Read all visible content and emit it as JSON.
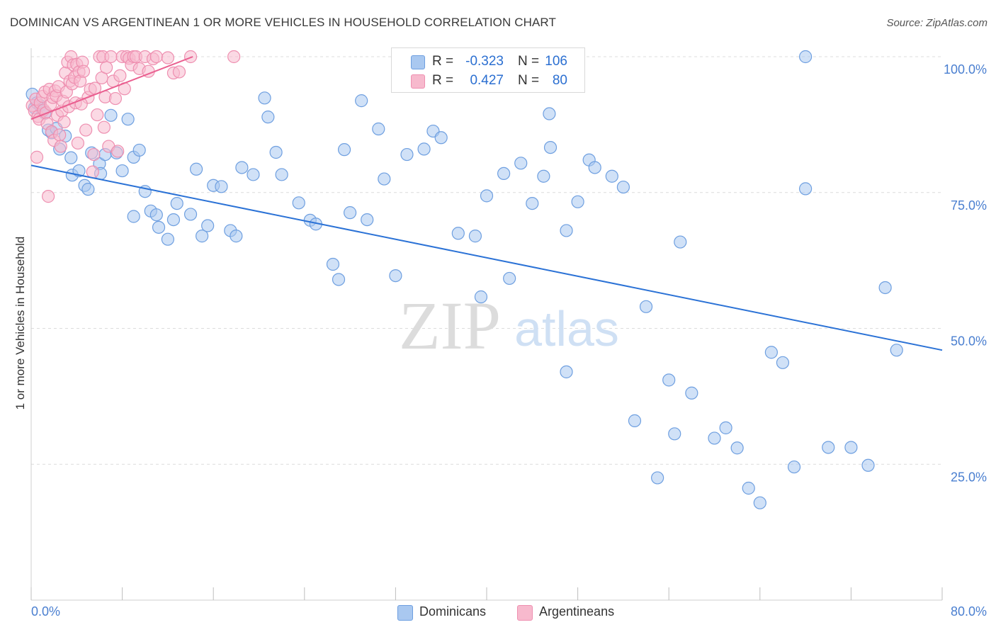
{
  "header": {
    "title": "DOMINICAN VS ARGENTINEAN 1 OR MORE VEHICLES IN HOUSEHOLD CORRELATION CHART",
    "source": "Source: ZipAtlas.com"
  },
  "watermark": {
    "zip": "ZIP",
    "atlas": "atlas"
  },
  "legend_top": [
    {
      "r_label": "R =",
      "r_value": "-0.323",
      "n_label": "N =",
      "n_value": "106"
    },
    {
      "r_label": "R =",
      "r_value": "0.427",
      "n_label": "N =",
      "n_value": "80"
    }
  ],
  "legend_bottom": [
    {
      "label": "Dominicans"
    },
    {
      "label": "Argentineans"
    }
  ],
  "colors": {
    "dominicans_fill": "#a9c8f0",
    "dominicans_stroke": "#6e9fe0",
    "dominicans_line": "#2b72d6",
    "argentineans_fill": "#f7b9cd",
    "argentineans_stroke": "#ee8fb0",
    "argentineans_line": "#ea5f90",
    "tick_label": "#4a7fd0",
    "grid": "#dcdcdc"
  },
  "chart_data": {
    "type": "scatter",
    "title": "DOMINICAN VS ARGENTINEAN 1 OR MORE VEHICLES IN HOUSEHOLD CORRELATION CHART",
    "xlabel": "",
    "ylabel": "1 or more Vehicles in Household",
    "xlim": [
      0,
      80
    ],
    "ylim": [
      0,
      100
    ],
    "x_tick_labels": [
      "0.0%",
      "80.0%"
    ],
    "y_tick_labels": [
      "100.0%",
      "75.0%",
      "50.0%",
      "25.0%"
    ],
    "y_ticks": [
      100,
      75,
      50,
      25
    ],
    "grid": true,
    "legend_position": "top-center",
    "series": [
      {
        "name": "Dominicans",
        "r": -0.323,
        "n": 106,
        "trend": {
          "x": [
            0,
            80
          ],
          "y": [
            80.0,
            46.0
          ]
        },
        "points": [
          [
            0.1,
            93.1
          ],
          [
            0.3,
            90.6
          ],
          [
            0.5,
            91.5
          ],
          [
            0.8,
            91.0
          ],
          [
            1.0,
            90.0
          ],
          [
            1.2,
            89.6
          ],
          [
            1.5,
            86.5
          ],
          [
            1.8,
            86.0
          ],
          [
            2.2,
            86.8
          ],
          [
            2.5,
            83.0
          ],
          [
            3.0,
            85.4
          ],
          [
            3.5,
            81.4
          ],
          [
            3.6,
            78.2
          ],
          [
            4.2,
            79.0
          ],
          [
            4.7,
            76.3
          ],
          [
            5.0,
            75.6
          ],
          [
            5.3,
            82.3
          ],
          [
            6.0,
            80.3
          ],
          [
            6.1,
            78.5
          ],
          [
            6.5,
            82.0
          ],
          [
            7.0,
            89.2
          ],
          [
            7.5,
            82.3
          ],
          [
            8.0,
            79.0
          ],
          [
            8.5,
            88.5
          ],
          [
            9.0,
            81.5
          ],
          [
            9.5,
            82.8
          ],
          [
            9.0,
            70.6
          ],
          [
            10.0,
            75.2
          ],
          [
            10.5,
            71.6
          ],
          [
            11.0,
            70.9
          ],
          [
            11.2,
            68.6
          ],
          [
            12.0,
            66.4
          ],
          [
            12.5,
            70.0
          ],
          [
            12.8,
            73.0
          ],
          [
            14.0,
            71.0
          ],
          [
            14.5,
            79.3
          ],
          [
            15.0,
            67.0
          ],
          [
            15.5,
            68.9
          ],
          [
            16.0,
            76.3
          ],
          [
            16.7,
            76.1
          ],
          [
            17.5,
            68.0
          ],
          [
            18.0,
            67.0
          ],
          [
            18.5,
            79.6
          ],
          [
            19.5,
            78.3
          ],
          [
            20.5,
            92.4
          ],
          [
            20.8,
            88.9
          ],
          [
            21.5,
            82.4
          ],
          [
            22.0,
            78.3
          ],
          [
            23.5,
            73.1
          ],
          [
            24.5,
            69.9
          ],
          [
            25.0,
            69.2
          ],
          [
            26.5,
            61.8
          ],
          [
            27.0,
            59.0
          ],
          [
            27.5,
            82.9
          ],
          [
            28.0,
            71.3
          ],
          [
            29.0,
            91.9
          ],
          [
            29.5,
            70.0
          ],
          [
            30.5,
            86.7
          ],
          [
            31.0,
            77.5
          ],
          [
            32.0,
            59.7
          ],
          [
            33.0,
            82.0
          ],
          [
            34.5,
            83.0
          ],
          [
            35.0,
            100.0
          ],
          [
            35.3,
            86.3
          ],
          [
            36.0,
            85.1
          ],
          [
            37.5,
            67.5
          ],
          [
            38.0,
            100.0
          ],
          [
            39.0,
            67.0
          ],
          [
            39.5,
            55.8
          ],
          [
            40.0,
            74.4
          ],
          [
            41.5,
            78.5
          ],
          [
            42.0,
            59.2
          ],
          [
            43.0,
            80.4
          ],
          [
            44.0,
            73.0
          ],
          [
            45.0,
            78.0
          ],
          [
            45.5,
            89.5
          ],
          [
            45.6,
            83.3
          ],
          [
            47.0,
            68.0
          ],
          [
            47.0,
            42.0
          ],
          [
            48.0,
            73.3
          ],
          [
            49.0,
            81.0
          ],
          [
            49.5,
            79.6
          ],
          [
            51.0,
            78.0
          ],
          [
            52.0,
            76.0
          ],
          [
            53.0,
            33.0
          ],
          [
            54.0,
            54.0
          ],
          [
            55.0,
            22.5
          ],
          [
            56.0,
            40.5
          ],
          [
            56.5,
            30.6
          ],
          [
            57.0,
            65.9
          ],
          [
            58.0,
            38.1
          ],
          [
            60.0,
            29.8
          ],
          [
            61.0,
            31.7
          ],
          [
            62.0,
            28.0
          ],
          [
            63.0,
            20.6
          ],
          [
            64.0,
            17.9
          ],
          [
            65.0,
            45.6
          ],
          [
            66.0,
            43.7
          ],
          [
            67.0,
            24.5
          ],
          [
            68.0,
            75.7
          ],
          [
            70.0,
            28.1
          ],
          [
            72.0,
            28.1
          ],
          [
            73.5,
            24.8
          ],
          [
            75.0,
            57.5
          ],
          [
            76.0,
            46.0
          ],
          [
            68.0,
            100.0
          ]
        ]
      },
      {
        "name": "Argentineans",
        "r": 0.427,
        "n": 80,
        "trend": {
          "x": [
            0,
            14.2
          ],
          "y": [
            88.5,
            100.0
          ]
        },
        "points": [
          [
            0.1,
            91.0
          ],
          [
            0.3,
            90.0
          ],
          [
            0.4,
            92.2
          ],
          [
            0.5,
            81.5
          ],
          [
            0.6,
            89.0
          ],
          [
            0.7,
            88.5
          ],
          [
            0.8,
            91.5
          ],
          [
            1.0,
            92.7
          ],
          [
            1.1,
            90.2
          ],
          [
            1.2,
            93.5
          ],
          [
            1.3,
            89.7
          ],
          [
            1.4,
            87.7
          ],
          [
            1.5,
            74.3
          ],
          [
            1.6,
            94.0
          ],
          [
            1.7,
            91.2
          ],
          [
            1.8,
            86.2
          ],
          [
            1.9,
            92.5
          ],
          [
            2.0,
            84.6
          ],
          [
            2.1,
            93.7
          ],
          [
            2.2,
            92.8
          ],
          [
            2.3,
            89.2
          ],
          [
            2.4,
            94.5
          ],
          [
            2.5,
            85.6
          ],
          [
            2.6,
            83.5
          ],
          [
            2.7,
            90.0
          ],
          [
            2.8,
            91.8
          ],
          [
            2.9,
            88.0
          ],
          [
            3.0,
            97.0
          ],
          [
            3.1,
            93.5
          ],
          [
            3.2,
            99.0
          ],
          [
            3.3,
            90.8
          ],
          [
            3.4,
            95.5
          ],
          [
            3.5,
            100.0
          ],
          [
            3.6,
            95.0
          ],
          [
            3.7,
            98.5
          ],
          [
            3.8,
            96.2
          ],
          [
            3.9,
            91.5
          ],
          [
            4.0,
            98.6
          ],
          [
            4.1,
            84.1
          ],
          [
            4.2,
            97.2
          ],
          [
            4.3,
            95.5
          ],
          [
            4.5,
            99.0
          ],
          [
            4.6,
            97.3
          ],
          [
            4.8,
            86.5
          ],
          [
            5.0,
            92.5
          ],
          [
            5.2,
            94.0
          ],
          [
            5.4,
            78.8
          ],
          [
            5.5,
            82.0
          ],
          [
            5.6,
            94.2
          ],
          [
            5.8,
            89.3
          ],
          [
            6.0,
            100.0
          ],
          [
            6.2,
            96.1
          ],
          [
            6.3,
            100.0
          ],
          [
            6.4,
            87.0
          ],
          [
            6.5,
            92.6
          ],
          [
            6.6,
            98.0
          ],
          [
            6.8,
            83.5
          ],
          [
            7.0,
            100.0
          ],
          [
            7.2,
            95.5
          ],
          [
            7.4,
            92.3
          ],
          [
            7.6,
            82.6
          ],
          [
            7.8,
            96.5
          ],
          [
            8.0,
            100.0
          ],
          [
            8.2,
            94.1
          ],
          [
            8.4,
            100.0
          ],
          [
            8.6,
            99.7
          ],
          [
            8.8,
            98.5
          ],
          [
            9.0,
            100.0
          ],
          [
            9.2,
            100.0
          ],
          [
            9.5,
            97.8
          ],
          [
            10.0,
            100.0
          ],
          [
            10.3,
            97.3
          ],
          [
            10.7,
            99.6
          ],
          [
            11.0,
            100.0
          ],
          [
            12.0,
            99.8
          ],
          [
            12.5,
            97.0
          ],
          [
            13.0,
            97.2
          ],
          [
            14.0,
            100.0
          ],
          [
            17.8,
            100.0
          ],
          [
            4.4,
            91.3
          ]
        ]
      }
    ]
  }
}
